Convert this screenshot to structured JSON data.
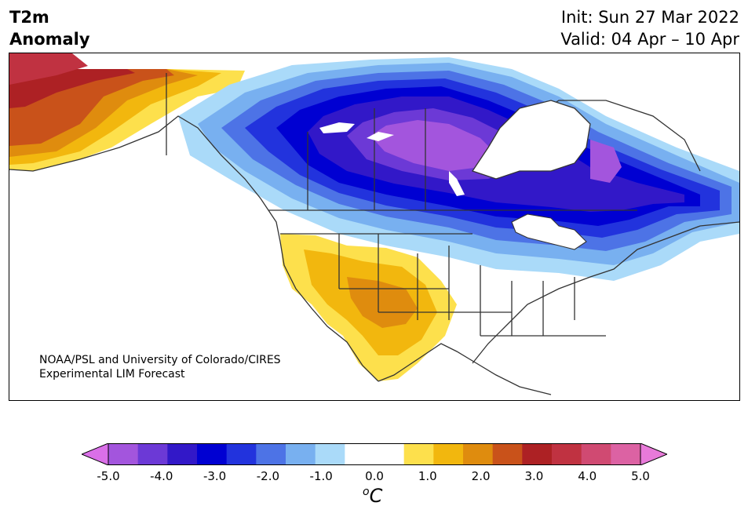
{
  "header": {
    "title_line1": "T2m",
    "title_line2": "Anomaly",
    "init": "Init: Sun 27 Mar 2022",
    "valid": "Valid: 04 Apr – 10 Apr"
  },
  "map": {
    "credit_line1": "NOAA/PSL and University of Colorado/CIRES",
    "credit_line2": "Experimental LIM Forecast"
  },
  "colorbar": {
    "unit_super": "o",
    "unit_base": "C",
    "tick_labels": [
      "-5.0",
      "-4.0",
      "-3.0",
      "-2.0",
      "-1.0",
      "0.0",
      "1.0",
      "2.0",
      "3.0",
      "4.0",
      "5.0"
    ],
    "colors": [
      "#da6fe8",
      "#a355dd",
      "#6c39d6",
      "#3218c8",
      "#0000d2",
      "#2233dd",
      "#4d73e6",
      "#78b0f0",
      "#aadaf9",
      "#ffffff",
      "#ffffff",
      "#fde04c",
      "#f2b70e",
      "#df8c0e",
      "#c9521a",
      "#ad2124",
      "#c03241",
      "#d04a72",
      "#dc62a3",
      "#e87ad9"
    ]
  }
}
